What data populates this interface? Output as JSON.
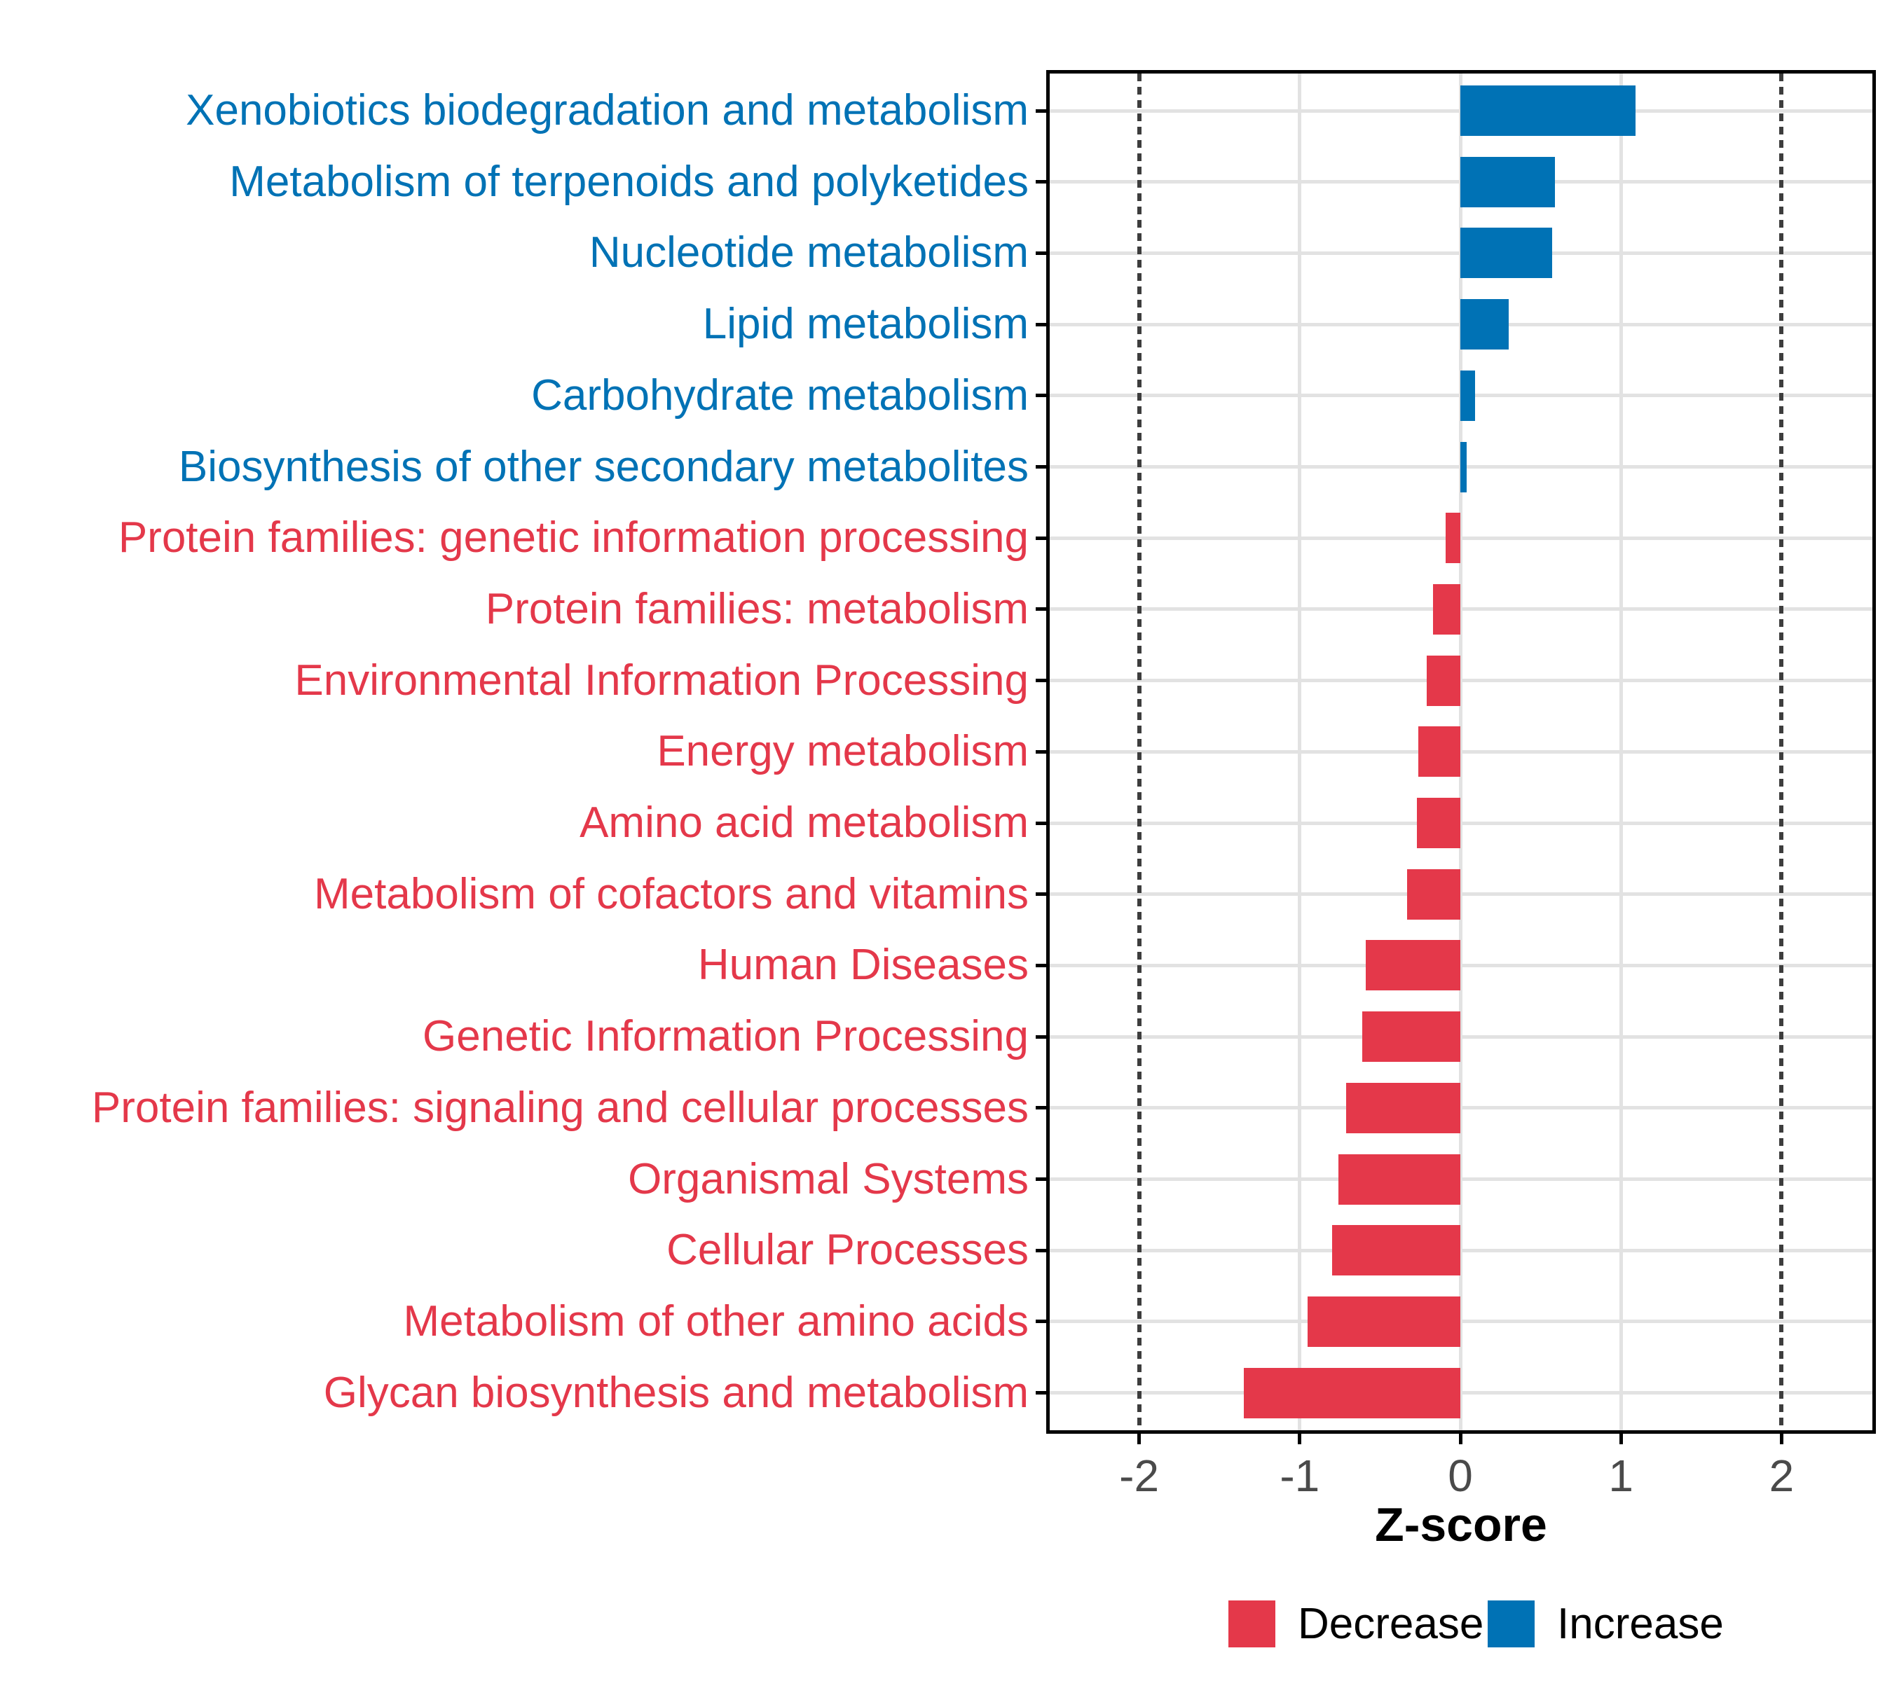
{
  "chart_data": {
    "type": "bar",
    "orientation": "horizontal",
    "xlabel": "Z-score",
    "categories": [
      "Xenobiotics biodegradation and metabolism",
      "Metabolism of terpenoids and polyketides",
      "Nucleotide metabolism",
      "Lipid metabolism",
      "Carbohydrate metabolism",
      "Biosynthesis of other secondary metabolites",
      "Protein families: genetic information processing",
      "Protein families: metabolism",
      "Environmental Information Processing",
      "Energy metabolism",
      "Amino acid metabolism",
      "Metabolism of cofactors and vitamins",
      "Human Diseases",
      "Genetic Information Processing",
      "Protein families: signaling and cellular processes",
      "Organismal Systems",
      "Cellular Processes",
      "Metabolism of other amino acids",
      "Glycan biosynthesis and metabolism"
    ],
    "values": [
      1.09,
      0.59,
      0.57,
      0.3,
      0.09,
      0.04,
      -0.09,
      -0.17,
      -0.21,
      -0.26,
      -0.27,
      -0.33,
      -0.59,
      -0.61,
      -0.71,
      -0.76,
      -0.8,
      -0.95,
      -1.35
    ],
    "xlim": [
      -2.58,
      2.58
    ],
    "x_ticks": [
      "-2",
      "-1",
      "0",
      "1",
      "2"
    ],
    "x_tick_values": [
      -2,
      -1,
      0,
      1,
      2
    ],
    "solid_gridlines_x": [
      -1,
      0,
      1
    ],
    "dashed_lines_x": [
      -2,
      2
    ],
    "grid": true,
    "legend_position": "bottom",
    "legend": [
      {
        "label": "Decrease",
        "color": "#e4384a"
      },
      {
        "label": "Increase",
        "color": "#0072b5"
      }
    ],
    "colors": {
      "increase": "#0072b5",
      "decrease": "#e4384a",
      "gridline": "#e2e2e2",
      "dashed_line": "#3d3d3d",
      "axis_text": "#4a4a4a",
      "axis_line": "#000000"
    }
  }
}
